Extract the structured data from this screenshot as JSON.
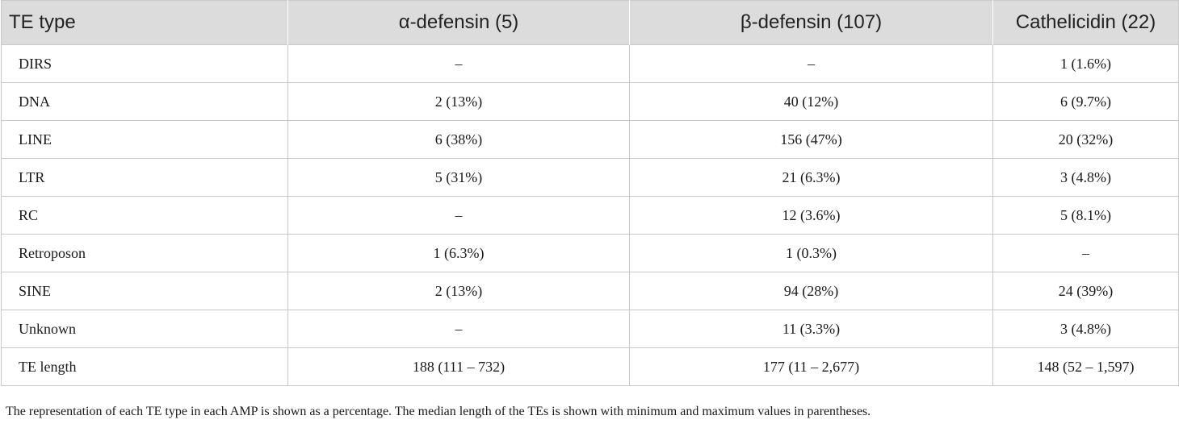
{
  "table": {
    "headers": [
      "TE type",
      "α-defensin (5)",
      "β-defensin (107)",
      "Cathelicidin (22)"
    ],
    "rows": [
      [
        "DIRS",
        "–",
        "–",
        "1 (1.6%)"
      ],
      [
        "DNA",
        "2 (13%)",
        "40 (12%)",
        "6 (9.7%)"
      ],
      [
        "LINE",
        "6 (38%)",
        "156 (47%)",
        "20 (32%)"
      ],
      [
        "LTR",
        "5 (31%)",
        "21 (6.3%)",
        "3 (4.8%)"
      ],
      [
        "RC",
        "–",
        "12 (3.6%)",
        "5 (8.1%)"
      ],
      [
        "Retroposon",
        "1 (6.3%)",
        "1 (0.3%)",
        "–"
      ],
      [
        "SINE",
        "2 (13%)",
        "94 (28%)",
        "24 (39%)"
      ],
      [
        "Unknown",
        "–",
        "11 (3.3%)",
        "3 (4.8%)"
      ],
      [
        "TE length",
        "188 (111 – 732)",
        "177 (11 – 2,677)",
        "148 (52 – 1,597)"
      ]
    ]
  },
  "caption": "The representation of each TE type in each AMP is shown as a percentage. The median length of the TEs is shown with minimum and maximum values in parentheses."
}
